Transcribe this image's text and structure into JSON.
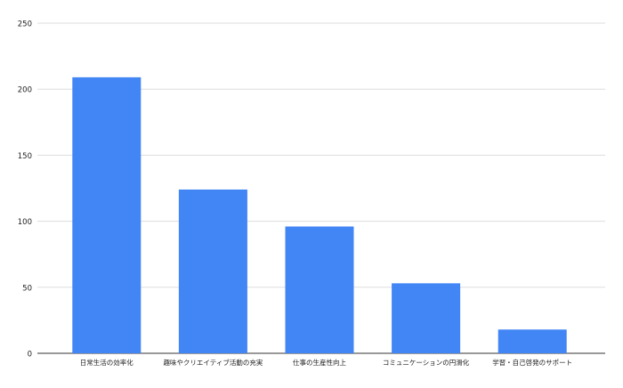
{
  "chart_data": {
    "type": "bar",
    "title": "",
    "xlabel": "",
    "ylabel": "",
    "categories": [
      "日常生活の効率化",
      "趣味やクリエイティブ活動の充実",
      "仕事の生産性向上",
      "コミュニケーションの円滑化",
      "学習・自己啓発のサポート"
    ],
    "values": [
      209,
      124,
      96,
      53,
      18
    ],
    "ylim": [
      0,
      250
    ],
    "yticks": [
      "0",
      "50",
      "100",
      "150",
      "200",
      "250"
    ],
    "grid": true,
    "legend": "none",
    "bar_color": "#4285f4"
  }
}
